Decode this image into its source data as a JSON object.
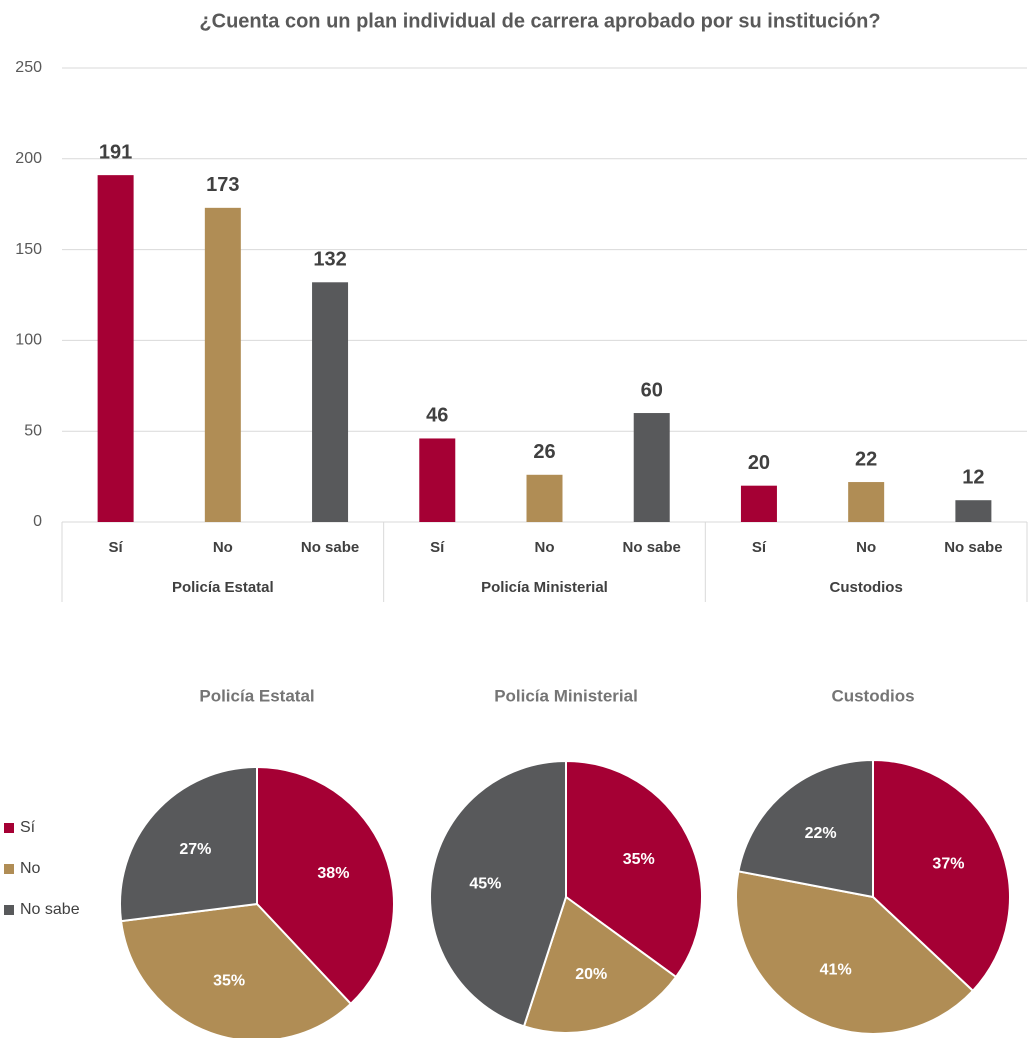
{
  "chart_data": [
    {
      "type": "bar",
      "title": "¿Cuenta con un plan individual de carrera aprobado por su institución?",
      "categories": [
        "Policía Estatal",
        "Policía Ministerial",
        "Custodios"
      ],
      "series": [
        {
          "name": "Sí",
          "color": "#a50034",
          "values": [
            191,
            46,
            20
          ]
        },
        {
          "name": "No",
          "color": "#b08d55",
          "values": [
            173,
            26,
            22
          ]
        },
        {
          "name": "No sabe",
          "color": "#58595b",
          "values": [
            132,
            60,
            12
          ]
        }
      ],
      "ylim": [
        0,
        250
      ],
      "yticks": [
        0,
        50,
        100,
        150,
        200,
        250
      ],
      "grid": true
    },
    {
      "type": "pie",
      "title": "Policía Estatal",
      "categories": [
        "Sí",
        "No",
        "No sabe"
      ],
      "values": [
        38,
        35,
        27
      ],
      "value_labels": [
        "38%",
        "35%",
        "27%"
      ],
      "colors": [
        "#a50034",
        "#b08d55",
        "#58595b"
      ],
      "legend": "left"
    },
    {
      "type": "pie",
      "title": "Policía Ministerial",
      "categories": [
        "Sí",
        "No",
        "No sabe"
      ],
      "values": [
        35,
        20,
        45
      ],
      "value_labels": [
        "35%",
        "20%",
        "45%"
      ],
      "colors": [
        "#a50034",
        "#b08d55",
        "#58595b"
      ]
    },
    {
      "type": "pie",
      "title": "Custodios",
      "categories": [
        "Sí",
        "No",
        "No sabe"
      ],
      "values": [
        37,
        41,
        22
      ],
      "value_labels": [
        "37%",
        "41%",
        "22%"
      ],
      "colors": [
        "#a50034",
        "#b08d55",
        "#58595b"
      ]
    }
  ]
}
